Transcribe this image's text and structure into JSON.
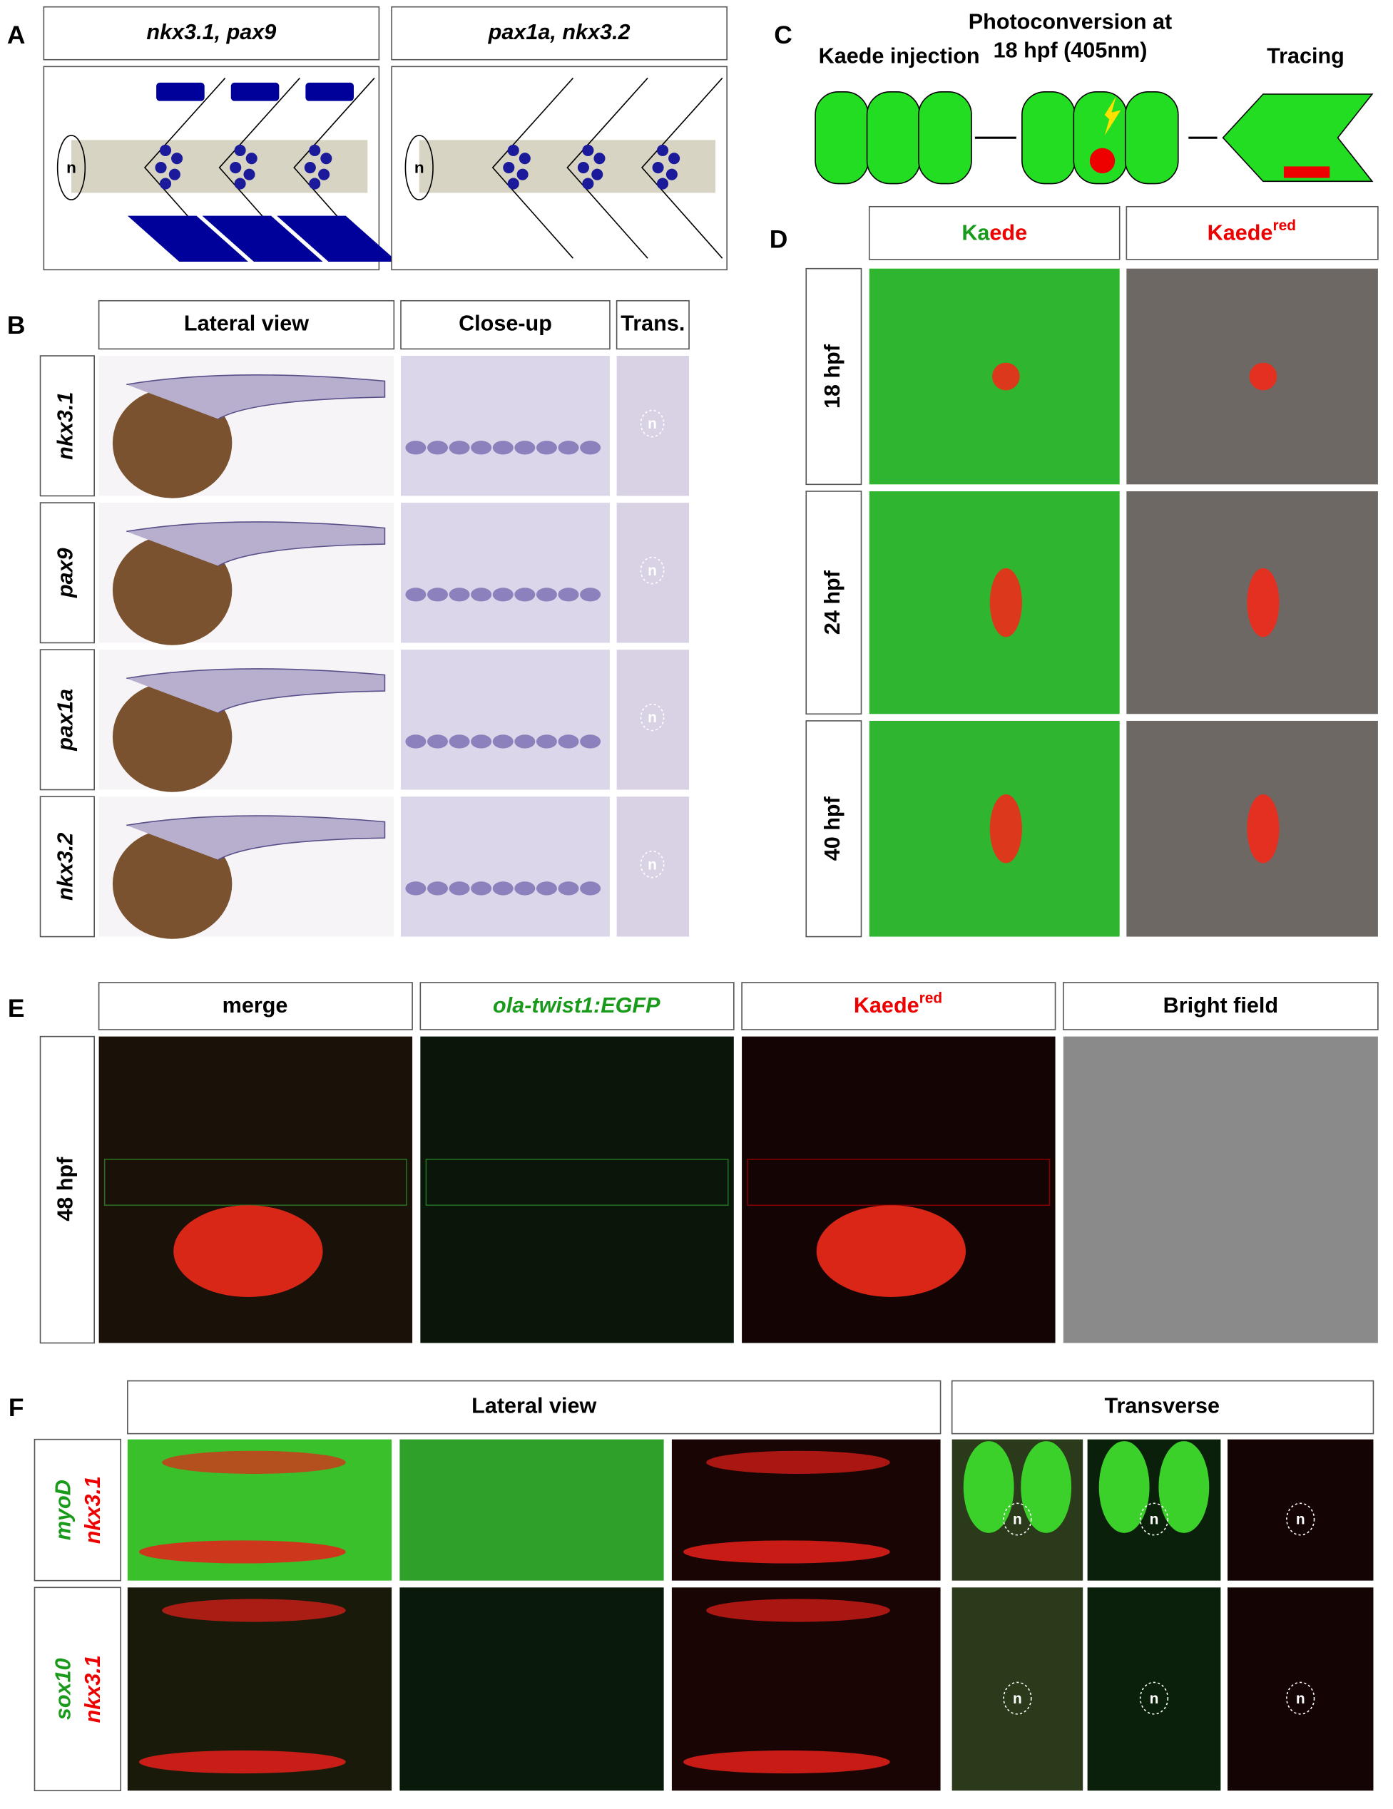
{
  "panels": {
    "A": {
      "letter": "A",
      "headers": [
        "nkx3.1, pax9",
        "pax1a, nkx3.2"
      ],
      "notochord": [
        "n",
        "n"
      ]
    },
    "B": {
      "letter": "B",
      "headers": [
        "Lateral view",
        "Close-up",
        "Trans."
      ],
      "rows": [
        "nkx3.1",
        "pax9",
        "pax1a",
        "nkx3.2"
      ],
      "notochord": [
        "n",
        "n",
        "n",
        "n"
      ]
    },
    "C": {
      "letter": "C",
      "steps": [
        "Kaede injection",
        [
          "Photoconversion at",
          "18 hpf (405nm)"
        ],
        "Tracing"
      ]
    },
    "D": {
      "letter": "D",
      "header_kaede": [
        "Ka",
        "ede"
      ],
      "header_red": [
        "Kaede",
        "red"
      ],
      "rows": [
        "18 hpf",
        "24 hpf",
        "40 hpf"
      ]
    },
    "E": {
      "letter": "E",
      "headers": [
        "merge",
        "ola-twist1:EGFP"
      ],
      "header_red": [
        "Kaede",
        "red"
      ],
      "header_bf": "Bright field",
      "row": "48 hpf"
    },
    "F": {
      "letter": "F",
      "headers": [
        "Lateral view",
        "Transverse"
      ],
      "rows": [
        [
          "myoD",
          "nkx3.1"
        ],
        [
          "sox10",
          "nkx3.1"
        ]
      ],
      "notochord": [
        "n",
        "n",
        "n",
        "n",
        "n",
        "n"
      ]
    }
  }
}
